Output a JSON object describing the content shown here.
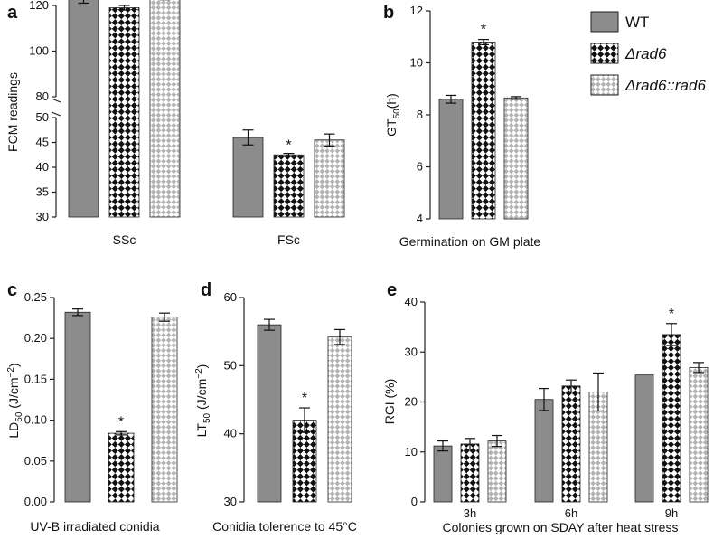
{
  "legend": [
    {
      "key": "wt",
      "label": "WT",
      "style": "solid"
    },
    {
      "key": "rad6",
      "label": "Δrad6",
      "style": "checker"
    },
    {
      "key": "comp",
      "label": "Δrad6::rad6",
      "style": "lattice"
    }
  ],
  "colors": {
    "wt": "#8c8c8c",
    "checker_dark": "#111111",
    "lattice": "#b3b3b3",
    "axis": "#222222"
  },
  "chart_data": [
    {
      "panel": "a",
      "type": "bar",
      "ylabel": "FCM readings",
      "xlabel": "",
      "categories": [
        "SSc",
        "FSc"
      ],
      "axis_break": {
        "lower_range": [
          30,
          50
        ],
        "upper_range": [
          80,
          120
        ]
      },
      "yticks_lower": [
        "30",
        "35",
        "40",
        "45",
        "50"
      ],
      "yticks_upper": [
        "80",
        "100",
        "120"
      ],
      "series": [
        {
          "name": "WT",
          "values": [
            124,
            46
          ],
          "errors": [
            3,
            1.5
          ]
        },
        {
          "name": "Δrad6",
          "values": [
            119,
            42.5
          ],
          "errors": [
            1,
            0.3
          ]
        },
        {
          "name": "Δrad6::rad6",
          "values": [
            124,
            45.5
          ],
          "errors": [
            1.5,
            1.2
          ]
        }
      ],
      "significance": [
        {
          "category": "FSc",
          "series": "Δrad6",
          "mark": "*"
        }
      ]
    },
    {
      "panel": "b",
      "type": "bar",
      "ylabel": "GT50(h)",
      "xlabel": "Germination on GM plate",
      "ylim": [
        4,
        12
      ],
      "yticks": [
        "4",
        "6",
        "8",
        "10",
        "12"
      ],
      "series": [
        {
          "name": "WT",
          "values": [
            8.6
          ],
          "errors": [
            0.15
          ]
        },
        {
          "name": "Δrad6",
          "values": [
            10.8
          ],
          "errors": [
            0.1
          ]
        },
        {
          "name": "Δrad6::rad6",
          "values": [
            8.65
          ],
          "errors": [
            0.05
          ]
        }
      ],
      "significance": [
        {
          "series": "Δrad6",
          "mark": "*"
        }
      ]
    },
    {
      "panel": "c",
      "type": "bar",
      "ylabel": "LD50 (J/cm−2)",
      "xlabel": "UV-B irradiated conidia",
      "ylim": [
        0,
        0.25
      ],
      "yticks": [
        "0.00",
        "0.05",
        "0.10",
        "0.15",
        "0.20",
        "0.25"
      ],
      "series": [
        {
          "name": "WT",
          "values": [
            0.232
          ],
          "errors": [
            0.004
          ]
        },
        {
          "name": "Δrad6",
          "values": [
            0.084
          ],
          "errors": [
            0.002
          ]
        },
        {
          "name": "Δrad6::rad6",
          "values": [
            0.226
          ],
          "errors": [
            0.005
          ]
        }
      ],
      "significance": [
        {
          "series": "Δrad6",
          "mark": "*"
        }
      ]
    },
    {
      "panel": "d",
      "type": "bar",
      "ylabel": "LT50 (J/cm−2)",
      "xlabel": "Conidia tolerence to 45°C",
      "ylim": [
        30,
        60
      ],
      "yticks": [
        "30",
        "40",
        "50",
        "60"
      ],
      "series": [
        {
          "name": "WT",
          "values": [
            56
          ],
          "errors": [
            0.8
          ]
        },
        {
          "name": "Δrad6",
          "values": [
            42
          ],
          "errors": [
            1.8
          ]
        },
        {
          "name": "Δrad6::rad6",
          "values": [
            54.2
          ],
          "errors": [
            1.1
          ]
        }
      ],
      "significance": [
        {
          "series": "Δrad6",
          "mark": "*"
        }
      ]
    },
    {
      "panel": "e",
      "type": "bar",
      "ylabel": "RGI (%)",
      "xlabel": "Colonies grown on SDAY after heat stress",
      "categories": [
        "3h",
        "6h",
        "9h"
      ],
      "ylim": [
        0,
        40
      ],
      "yticks": [
        "0",
        "10",
        "20",
        "30",
        "40"
      ],
      "series": [
        {
          "name": "WT",
          "values": [
            11.2,
            20.5,
            25.4
          ],
          "errors": [
            1.0,
            2.2,
            0
          ]
        },
        {
          "name": "Δrad6",
          "values": [
            11.6,
            23.2,
            33.5
          ],
          "errors": [
            1.1,
            1.2,
            2.2
          ]
        },
        {
          "name": "Δrad6::rad6",
          "values": [
            12.2,
            22,
            26.9
          ],
          "errors": [
            1.1,
            3.8,
            1.0
          ]
        }
      ],
      "significance": [
        {
          "category": "9h",
          "series": "Δrad6",
          "mark": "*"
        }
      ]
    }
  ]
}
